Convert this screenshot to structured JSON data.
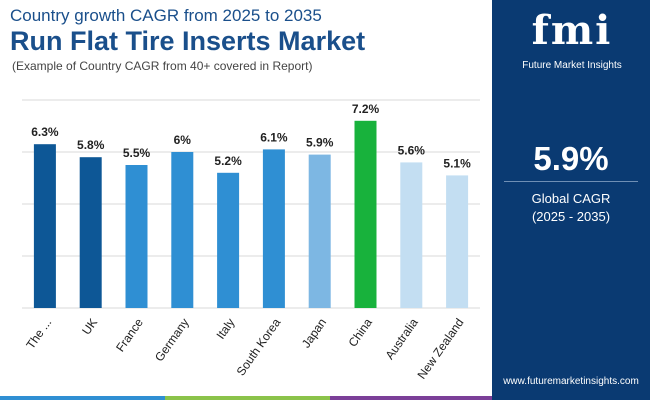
{
  "header": {
    "subtitle_top": "Country growth CAGR from 2025 to 2035",
    "title": "Run Flat Tire Inserts Market",
    "note": "(Example of Country CAGR from 40+ covered in Report)"
  },
  "sidebar": {
    "logo_mark": "fmi",
    "logo_text": "Future Market Insights",
    "kpi_value": "5.9%",
    "kpi_label_1": "Global CAGR",
    "kpi_label_2": "(2025 - 2035)",
    "url": "www.futuremarketinsights.com"
  },
  "colors": {
    "navy": "#0a3a72",
    "dark_bar": "#0d5796",
    "mid_bar": "#2f8fd3",
    "light_bar": "#7db7e3",
    "pale_bar": "#c3def2",
    "highlight": "#18b23c"
  },
  "chart_data": {
    "type": "bar",
    "categories": [
      "The ...",
      "UK",
      "France",
      "Germany",
      "Italy",
      "South Korea",
      "Japan",
      "China",
      "Australia",
      "New Zealand"
    ],
    "values": [
      6.3,
      5.8,
      5.5,
      6.0,
      5.2,
      6.1,
      5.9,
      7.2,
      5.6,
      5.1
    ],
    "labels": [
      "6.3%",
      "5.8%",
      "5.5%",
      "6%",
      "5.2%",
      "6.1%",
      "5.9%",
      "7.2%",
      "5.6%",
      "5.1%"
    ],
    "bar_colors": [
      "#0d5796",
      "#0d5796",
      "#2f8fd3",
      "#2f8fd3",
      "#2f8fd3",
      "#2f8fd3",
      "#7db7e3",
      "#18b23c",
      "#c3def2",
      "#c3def2"
    ],
    "ylim": [
      0,
      8
    ],
    "grid": true,
    "title": "",
    "xlabel": "",
    "ylabel": ""
  }
}
